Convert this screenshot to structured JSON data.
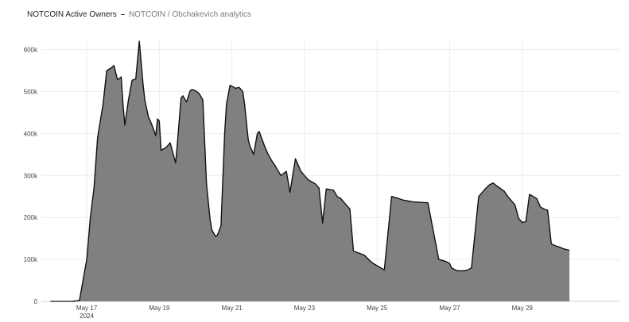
{
  "title": {
    "main": "NOTCOIN Active Owners",
    "separator": "–",
    "sub": "NOTCOIN / Obchakevich analytics"
  },
  "colors": {
    "area_fill": "#808080",
    "line": "#111111",
    "grid": "#ececec"
  },
  "chart_data": {
    "type": "area",
    "title": "NOTCOIN Active Owners",
    "subtitle": "NOTCOIN / Obchakevich analytics",
    "xlabel": "",
    "ylabel": "",
    "x_ticks": [
      {
        "label": "May 17",
        "sub": "2024",
        "day": 17
      },
      {
        "label": "May 19",
        "day": 19
      },
      {
        "label": "May 21",
        "day": 21
      },
      {
        "label": "May 23",
        "day": 23
      },
      {
        "label": "May 25",
        "day": 25
      },
      {
        "label": "May 27",
        "day": 27
      },
      {
        "label": "May 29",
        "day": 29
      }
    ],
    "y_ticks": [
      {
        "label": "0",
        "value": 0
      },
      {
        "label": "100k",
        "value": 100000
      },
      {
        "label": "200k",
        "value": 200000
      },
      {
        "label": "300k",
        "value": 300000
      },
      {
        "label": "400k",
        "value": 400000
      },
      {
        "label": "500k",
        "value": 500000
      },
      {
        "label": "600k",
        "value": 600000
      }
    ],
    "xlim": [
      15.75,
      31.7
    ],
    "ylim": [
      0,
      620000
    ],
    "grid": true,
    "legend": "none",
    "series": [
      {
        "x": [
          16.6,
          16.8,
          17.0,
          17.1,
          17.2,
          17.3,
          17.45,
          17.55,
          17.65,
          17.75,
          17.85,
          17.95,
          18.0,
          18.05,
          18.15,
          18.25,
          18.35,
          18.45,
          18.55,
          18.6,
          18.7,
          18.8,
          18.9,
          18.95,
          19.0,
          19.05,
          19.15,
          19.2,
          19.3,
          19.45,
          19.5,
          19.6,
          19.65,
          19.75,
          19.85,
          19.9,
          20.0,
          20.1,
          20.2,
          20.3,
          20.4,
          20.45,
          20.55,
          20.6,
          20.7,
          20.8,
          20.85,
          20.95,
          21.0,
          21.1,
          21.2,
          21.3,
          21.35,
          21.45,
          21.5,
          21.6,
          21.7,
          21.75,
          21.9,
          22.0,
          22.1,
          22.2,
          22.35,
          22.5,
          22.6,
          22.75,
          22.85,
          22.9,
          23.0,
          23.1,
          23.2,
          23.3,
          23.4,
          23.5,
          23.6,
          23.8,
          23.9,
          24.0,
          24.05,
          24.1,
          24.25,
          24.35,
          24.5,
          24.65,
          24.8,
          24.9,
          25.0,
          25.2,
          25.4,
          25.6,
          25.7,
          25.8,
          26.0,
          26.4,
          26.7,
          26.9,
          27.0,
          27.05,
          27.2,
          27.4,
          27.5,
          27.6,
          27.8,
          28.0,
          28.1,
          28.2,
          28.3,
          28.5,
          28.6,
          28.8,
          28.9,
          29.0,
          29.1,
          29.2,
          29.3,
          29.4,
          29.5,
          29.6,
          29.7,
          29.8,
          29.9,
          30.0,
          30.15,
          30.3
        ],
        "y": [
          0,
          2000,
          100000,
          200000,
          270000,
          390000,
          470000,
          550000,
          555000,
          562000,
          528000,
          535000,
          470000,
          420000,
          480000,
          527000,
          530000,
          620000,
          520000,
          480000,
          440000,
          420000,
          395000,
          435000,
          430000,
          360000,
          365000,
          368000,
          378000,
          330000,
          380000,
          485000,
          490000,
          475000,
          502000,
          505000,
          502000,
          495000,
          480000,
          280000,
          195000,
          170000,
          155000,
          158000,
          180000,
          400000,
          470000,
          515000,
          513000,
          508000,
          510000,
          500000,
          470000,
          385000,
          370000,
          350000,
          400000,
          405000,
          370000,
          350000,
          335000,
          322000,
          300000,
          310000,
          260000,
          340000,
          320000,
          310000,
          300000,
          290000,
          285000,
          280000,
          270000,
          187000,
          268000,
          265000,
          250000,
          245000,
          240000,
          235000,
          220000,
          120000,
          115000,
          110000,
          97000,
          90000,
          85000,
          75000,
          250000,
          245000,
          242000,
          240000,
          237000,
          235000,
          100000,
          95000,
          90000,
          80000,
          73000,
          73000,
          75000,
          80000,
          250000,
          270000,
          278000,
          282000,
          275000,
          263000,
          250000,
          230000,
          198000,
          188000,
          190000,
          255000,
          250000,
          245000,
          225000,
          220000,
          217000,
          137000,
          133000,
          130000,
          125000,
          122000
        ]
      }
    ]
  }
}
